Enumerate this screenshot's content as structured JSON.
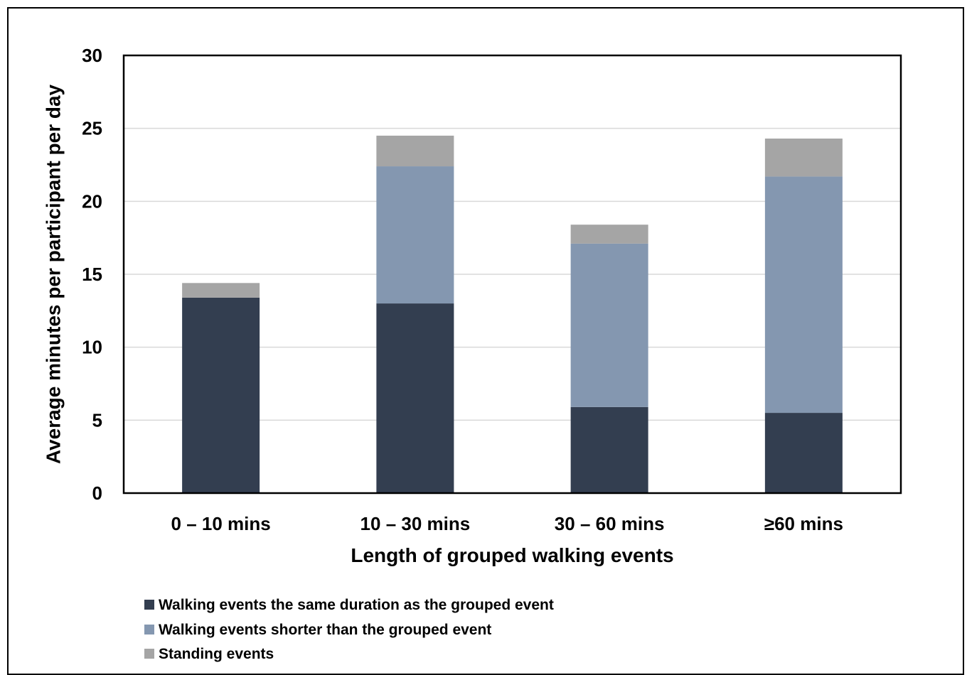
{
  "chart_data": {
    "type": "bar",
    "stacked": true,
    "categories": [
      "0 – 10 mins",
      "10 – 30 mins",
      "30 – 60 mins",
      "≥60 mins"
    ],
    "series": [
      {
        "name": "Walking events the same duration as the grouped event",
        "color": "#333e50",
        "values": [
          13.4,
          13.0,
          5.9,
          5.5
        ]
      },
      {
        "name": "Walking events shorter than the grouped event",
        "color": "#8497b0",
        "values": [
          0.0,
          9.4,
          11.2,
          16.2
        ]
      },
      {
        "name": "Standing events",
        "color": "#a5a5a5",
        "values": [
          1.0,
          2.1,
          1.3,
          2.6
        ]
      }
    ],
    "xlabel": "Length of grouped walking events",
    "ylabel": "Average minutes per participant per day",
    "ylim": [
      0,
      30
    ],
    "yticks": [
      0,
      5,
      10,
      15,
      20,
      25,
      30
    ],
    "grid": true,
    "legend_position": "bottom-left"
  }
}
